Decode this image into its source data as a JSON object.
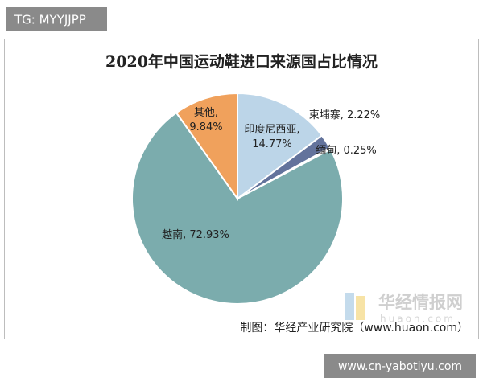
{
  "badge": "TG: MYYJJPP",
  "chart_data": {
    "type": "pie",
    "title": "2020年中国运动鞋进口来源国占比情况",
    "labels": [
      "印度尼西亚,\n14.77%",
      "束埔寨, 2.22%",
      "缅甸, 0.25%",
      "越南, 72.93%",
      "其他,\n9.84%"
    ],
    "values": [
      14.77,
      2.22,
      0.25,
      72.93,
      9.84
    ],
    "colors": [
      "#bcd5e8",
      "#63739c",
      "#a9b8cc",
      "#7bacad",
      "#f0a15c"
    ],
    "source": "制图：华经产业研究院（www.huaon.com）"
  },
  "watermark": {
    "title": "华经情报网",
    "subtitle": "huaon.com"
  },
  "footer_badge": "www.cn-yabotiyu.com"
}
